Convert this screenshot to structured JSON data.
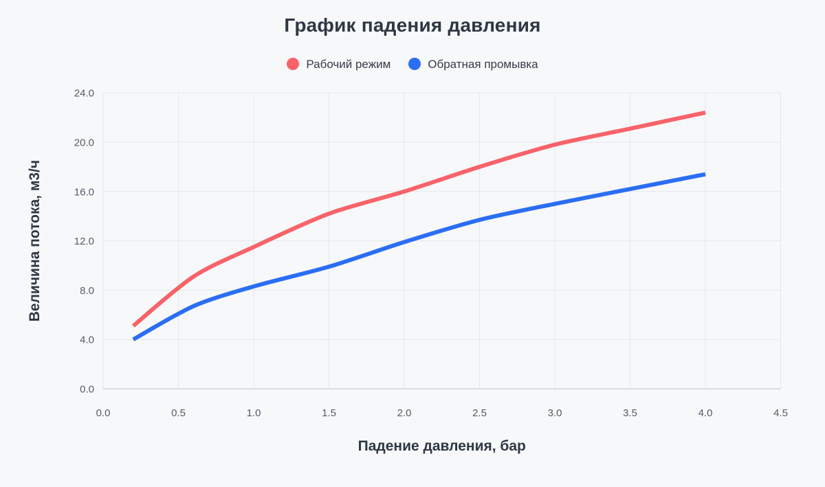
{
  "chart_data": {
    "type": "line",
    "title": "График падения давления",
    "xlabel": "Падение давления, бар",
    "ylabel": "Величина потока, м3/ч",
    "xlim": [
      0,
      4.5
    ],
    "ylim": [
      0,
      24
    ],
    "grid": true,
    "legend_position": "top",
    "xticks": {
      "values": [
        0,
        0.5,
        1,
        1.5,
        2,
        2.5,
        3,
        3.5,
        4,
        4.5
      ],
      "labels": [
        "0.0",
        "0.5",
        "1.0",
        "1.5",
        "2.0",
        "2.5",
        "3.0",
        "3.5",
        "4.0",
        "4.5"
      ]
    },
    "yticks": {
      "values": [
        0,
        4,
        8,
        12,
        16,
        20,
        24
      ],
      "labels": [
        "0.0",
        "4.0",
        "8.0",
        "12.0",
        "16.0",
        "20.0",
        "24.0"
      ]
    },
    "series": [
      {
        "name": "Рабочий режим",
        "color": "#f8636a",
        "x": [
          0.2,
          0.6,
          1.0,
          1.5,
          2.0,
          2.5,
          3.0,
          3.5,
          4.0
        ],
        "y": [
          5.1,
          9.1,
          11.5,
          14.2,
          16.0,
          18.0,
          19.8,
          21.1,
          22.4
        ]
      },
      {
        "name": "Обратная промывка",
        "color": "#2b6ef3",
        "x": [
          0.2,
          0.6,
          1.0,
          1.5,
          2.0,
          2.5,
          3.0,
          3.5,
          4.0
        ],
        "y": [
          4.0,
          6.7,
          8.3,
          9.9,
          11.9,
          13.7,
          15.0,
          16.2,
          17.4
        ]
      }
    ]
  },
  "colors": {
    "background": "#f7f8fa",
    "grid": "#e4e7ec",
    "axis_line": "#d8dbe0",
    "title": "#2e3744",
    "tick_label": "#525c68",
    "legend_text": "#343c48"
  }
}
